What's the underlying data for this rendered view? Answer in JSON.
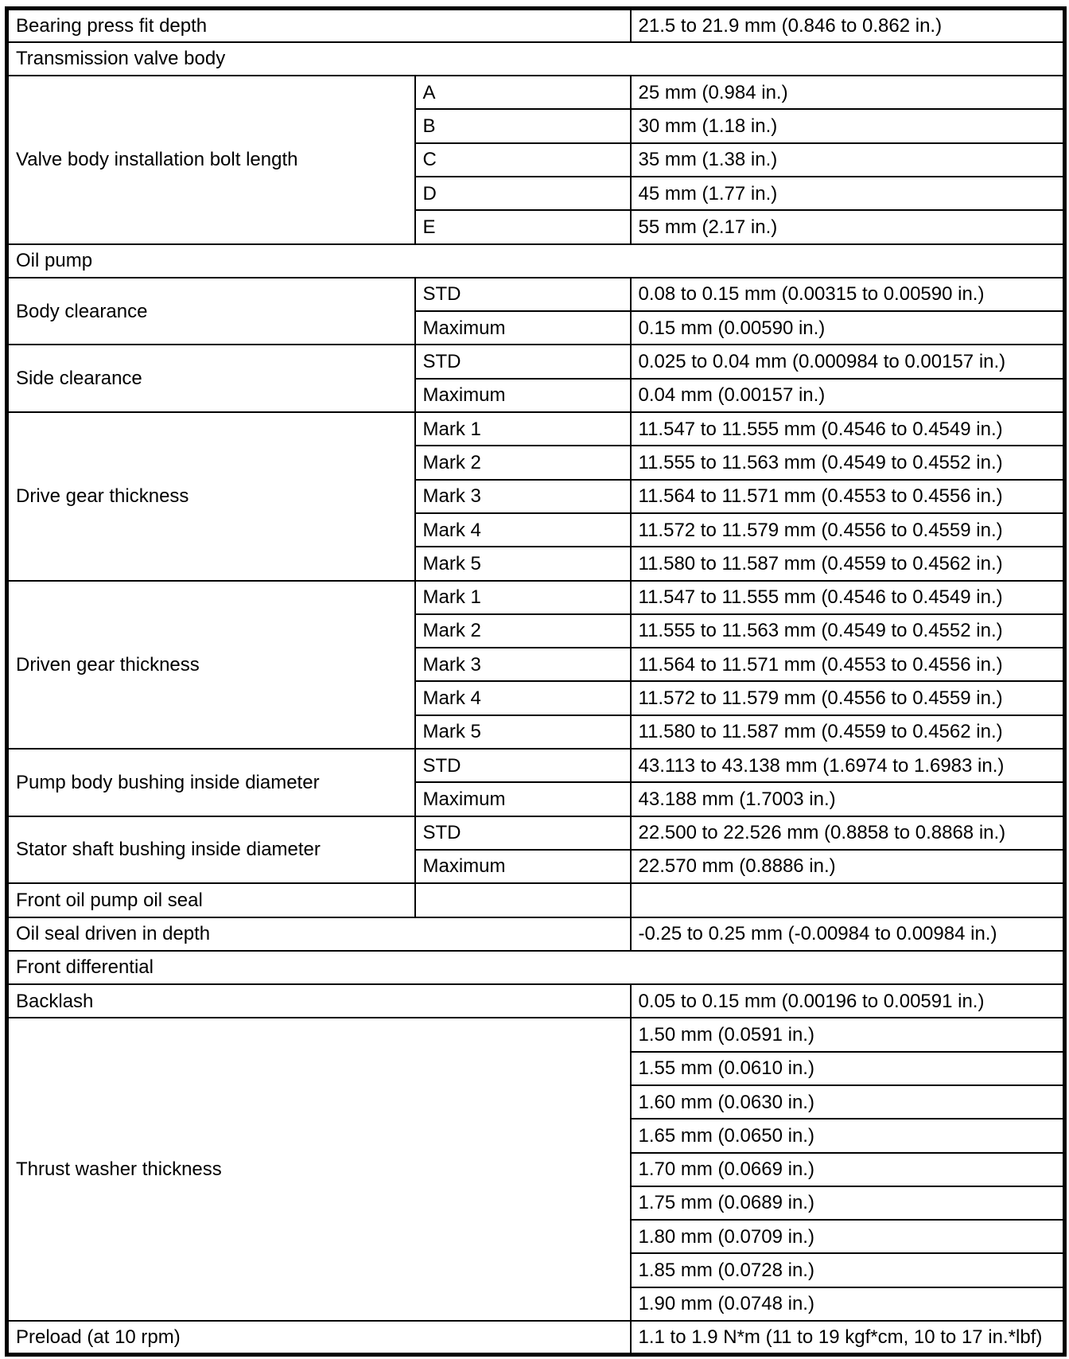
{
  "page": {
    "background_color": "#ffffff",
    "text_color": "#000000",
    "border_color": "#000000"
  },
  "table": {
    "kind": "specification-table",
    "columns": [
      "item",
      "sub_item",
      "specification"
    ],
    "rows": [
      {
        "type": "pair",
        "label": "Bearing press fit depth",
        "value": "21.5 to 21.9 mm (0.846 to 0.862 in.)"
      },
      {
        "type": "section",
        "label": "Transmission valve body"
      },
      {
        "type": "group",
        "label": "Valve body installation bolt length",
        "entries": [
          {
            "sub": "A",
            "value": "25 mm (0.984 in.)"
          },
          {
            "sub": "B",
            "value": "30 mm (1.18 in.)"
          },
          {
            "sub": "C",
            "value": "35 mm (1.38 in.)"
          },
          {
            "sub": "D",
            "value": "45 mm (1.77 in.)"
          },
          {
            "sub": "E",
            "value": "55 mm (2.17 in.)"
          }
        ]
      },
      {
        "type": "section",
        "label": "Oil pump"
      },
      {
        "type": "group",
        "label": "Body clearance",
        "entries": [
          {
            "sub": "STD",
            "value": "0.08 to 0.15 mm (0.00315 to 0.00590 in.)"
          },
          {
            "sub": "Maximum",
            "value": "0.15 mm (0.00590 in.)"
          }
        ]
      },
      {
        "type": "group",
        "label": "Side clearance",
        "entries": [
          {
            "sub": "STD",
            "value": "0.025 to 0.04 mm (0.000984 to 0.00157 in.)"
          },
          {
            "sub": "Maximum",
            "value": "0.04 mm (0.00157 in.)"
          }
        ]
      },
      {
        "type": "group",
        "label": "Drive gear thickness",
        "entries": [
          {
            "sub": "Mark 1",
            "value": "11.547 to 11.555 mm (0.4546 to 0.4549 in.)"
          },
          {
            "sub": "Mark 2",
            "value": "11.555 to 11.563 mm (0.4549 to 0.4552 in.)"
          },
          {
            "sub": "Mark 3",
            "value": "11.564 to 11.571 mm (0.4553 to 0.4556 in.)"
          },
          {
            "sub": "Mark 4",
            "value": "11.572 to 11.579 mm (0.4556 to 0.4559 in.)"
          },
          {
            "sub": "Mark 5",
            "value": "11.580 to 11.587 mm (0.4559 to 0.4562 in.)"
          }
        ]
      },
      {
        "type": "group",
        "label": "Driven gear thickness",
        "entries": [
          {
            "sub": "Mark 1",
            "value": "11.547 to 11.555 mm (0.4546 to 0.4549 in.)"
          },
          {
            "sub": "Mark 2",
            "value": "11.555 to 11.563 mm (0.4549 to 0.4552 in.)"
          },
          {
            "sub": "Mark 3",
            "value": "11.564 to 11.571 mm (0.4553 to 0.4556 in.)"
          },
          {
            "sub": "Mark 4",
            "value": "11.572 to 11.579 mm (0.4556 to 0.4559 in.)"
          },
          {
            "sub": "Mark 5",
            "value": "11.580 to 11.587 mm (0.4559 to 0.4562 in.)"
          }
        ]
      },
      {
        "type": "group",
        "label": "Pump body bushing inside diameter",
        "entries": [
          {
            "sub": "STD",
            "value": "43.113 to 43.138 mm (1.6974 to 1.6983 in.)"
          },
          {
            "sub": "Maximum",
            "value": "43.188 mm (1.7003 in.)"
          }
        ]
      },
      {
        "type": "group",
        "label": "Stator shaft bushing inside diameter",
        "entries": [
          {
            "sub": "STD",
            "value": "22.500 to 22.526 mm (0.8858 to 0.8868 in.)"
          },
          {
            "sub": "Maximum",
            "value": "22.570 mm (0.8886 in.)"
          }
        ]
      },
      {
        "type": "triple",
        "label": "Front oil pump oil seal",
        "sub": "",
        "value": ""
      },
      {
        "type": "pair",
        "label": "Oil seal driven in depth",
        "value": "-0.25 to 0.25 mm (-0.00984 to 0.00984 in.)"
      },
      {
        "type": "section",
        "label": "Front differential"
      },
      {
        "type": "pair",
        "label": "Backlash",
        "value": "0.05 to 0.15 mm (0.00196 to 0.00591 in.)"
      },
      {
        "type": "valuegroup",
        "label": "Thrust washer thickness",
        "values": [
          "1.50 mm (0.0591 in.)",
          "1.55 mm (0.0610 in.)",
          "1.60 mm (0.0630 in.)",
          "1.65 mm (0.0650 in.)",
          "1.70 mm (0.0669 in.)",
          "1.75 mm (0.0689 in.)",
          "1.80 mm (0.0709 in.)",
          "1.85 mm (0.0728 in.)",
          "1.90 mm (0.0748 in.)"
        ]
      },
      {
        "type": "pair",
        "label": "Preload (at 10 rpm)",
        "value": "1.1 to 1.9 N*m (11 to 19 kgf*cm, 10 to 17 in.*lbf)"
      }
    ]
  }
}
